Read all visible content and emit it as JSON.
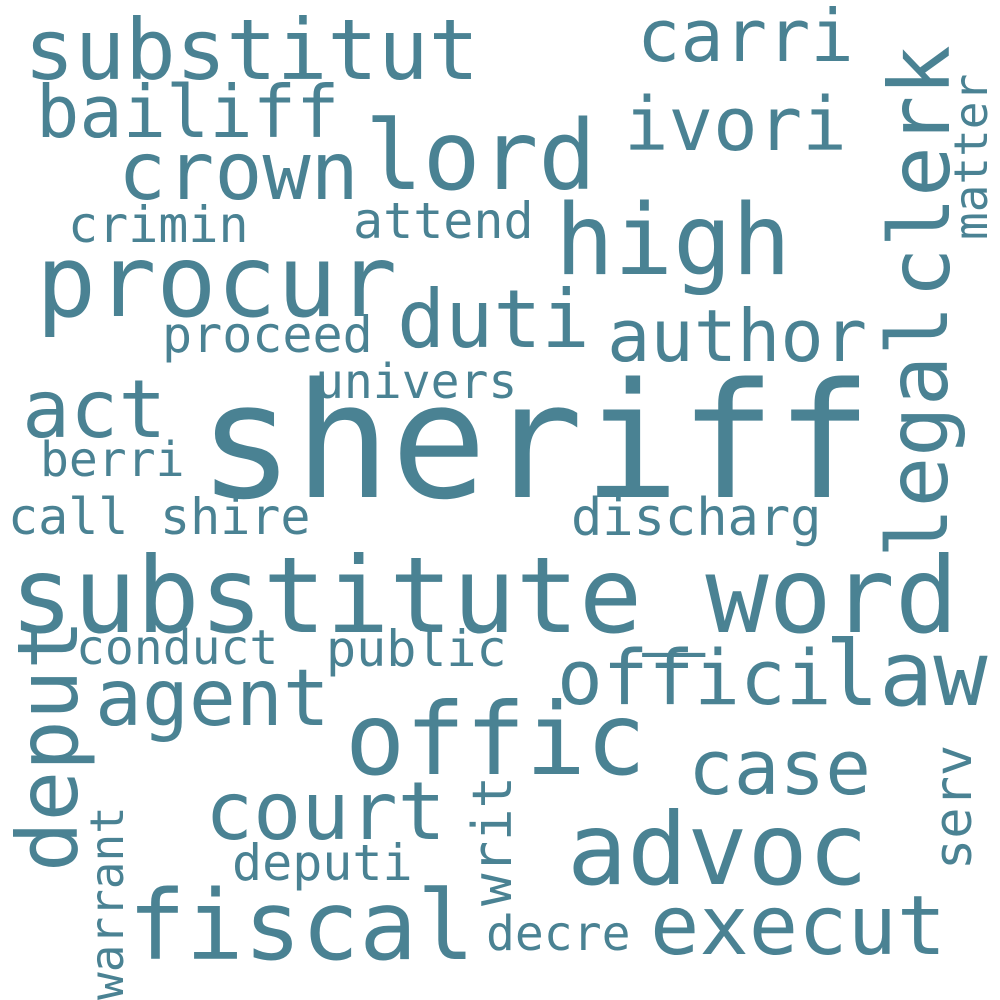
{
  "cloud": {
    "background": "#ffffff",
    "text_color": "#4a8293",
    "words": {
      "sheriff": "sheriff",
      "substitute_word": "substitute_word",
      "substitut": "substitut",
      "lord": "lord",
      "high": "high",
      "procur": "procur",
      "duti": "duti",
      "crown": "crown",
      "bailiff": "bailiff",
      "carri": "carri",
      "ivori": "ivori",
      "crimin": "crimin",
      "attend": "attend",
      "author": "author",
      "proceed": "proceed",
      "univers": "univers",
      "act": "act",
      "berri": "berri",
      "call": "call",
      "shire": "shire",
      "discharg": "discharg",
      "conduct": "conduct",
      "public": "public",
      "agent": "agent",
      "offici": "offici",
      "law": "law",
      "offic": "offic",
      "case": "case",
      "court": "court",
      "advoc": "advoc",
      "deputi": "deputi",
      "fiscal": "fiscal",
      "execut": "execut",
      "decre": "decre",
      "clerk": "clerk",
      "matter": "matter",
      "legal": "legal",
      "deput": "deput",
      "warrant": "warrant",
      "writ": "writ",
      "serv": "serv"
    }
  }
}
